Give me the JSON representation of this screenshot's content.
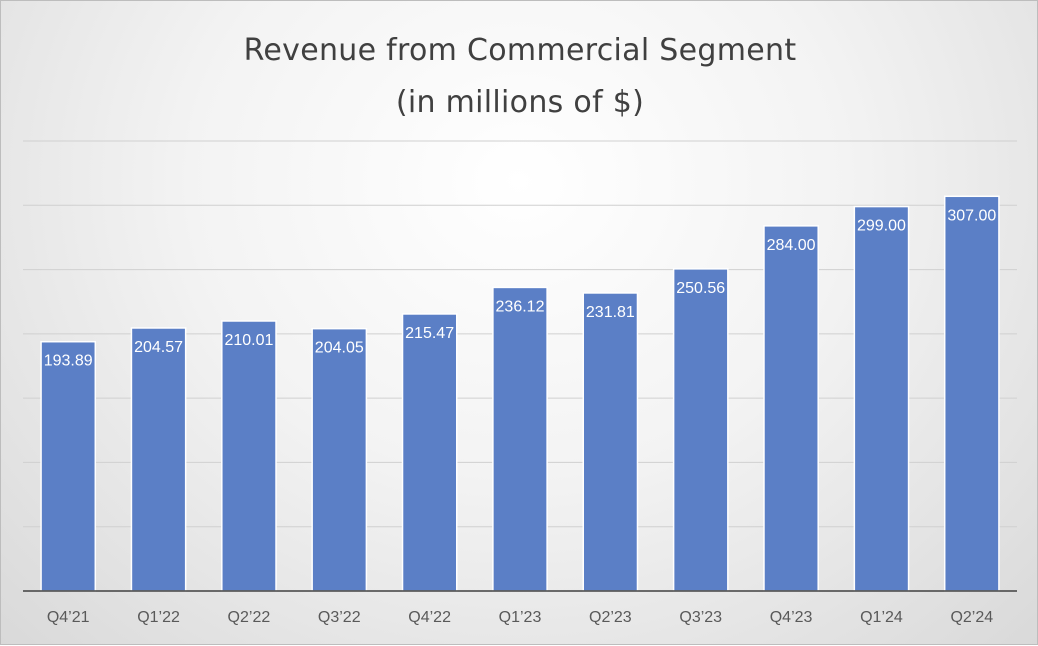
{
  "chart_data": {
    "type": "bar",
    "title": "Revenue from Commercial Segment",
    "subtitle": "(in millions of $)",
    "categories": [
      "Q4’21",
      "Q1’22",
      "Q2’22",
      "Q3’22",
      "Q4’22",
      "Q1’23",
      "Q2’23",
      "Q3’23",
      "Q4’23",
      "Q1’24",
      "Q2’24"
    ],
    "values": [
      193.89,
      204.57,
      210.01,
      204.05,
      215.47,
      236.12,
      231.81,
      250.56,
      284.0,
      299.0,
      307.0
    ],
    "data_labels": [
      "193.89",
      "204.57",
      "210.01",
      "204.05",
      "215.47",
      "236.12",
      "231.81",
      "250.56",
      "284.00",
      "299.00",
      "307.00"
    ],
    "ylim": [
      0,
      350
    ],
    "grid": true,
    "legend": "none",
    "colors": {
      "bar": "#5b7fc6",
      "bar_edge": "#ffffff",
      "grid": "#d0d0d0",
      "axis": "#404040",
      "label": "#ffffff",
      "tick_text": "#595959"
    }
  }
}
